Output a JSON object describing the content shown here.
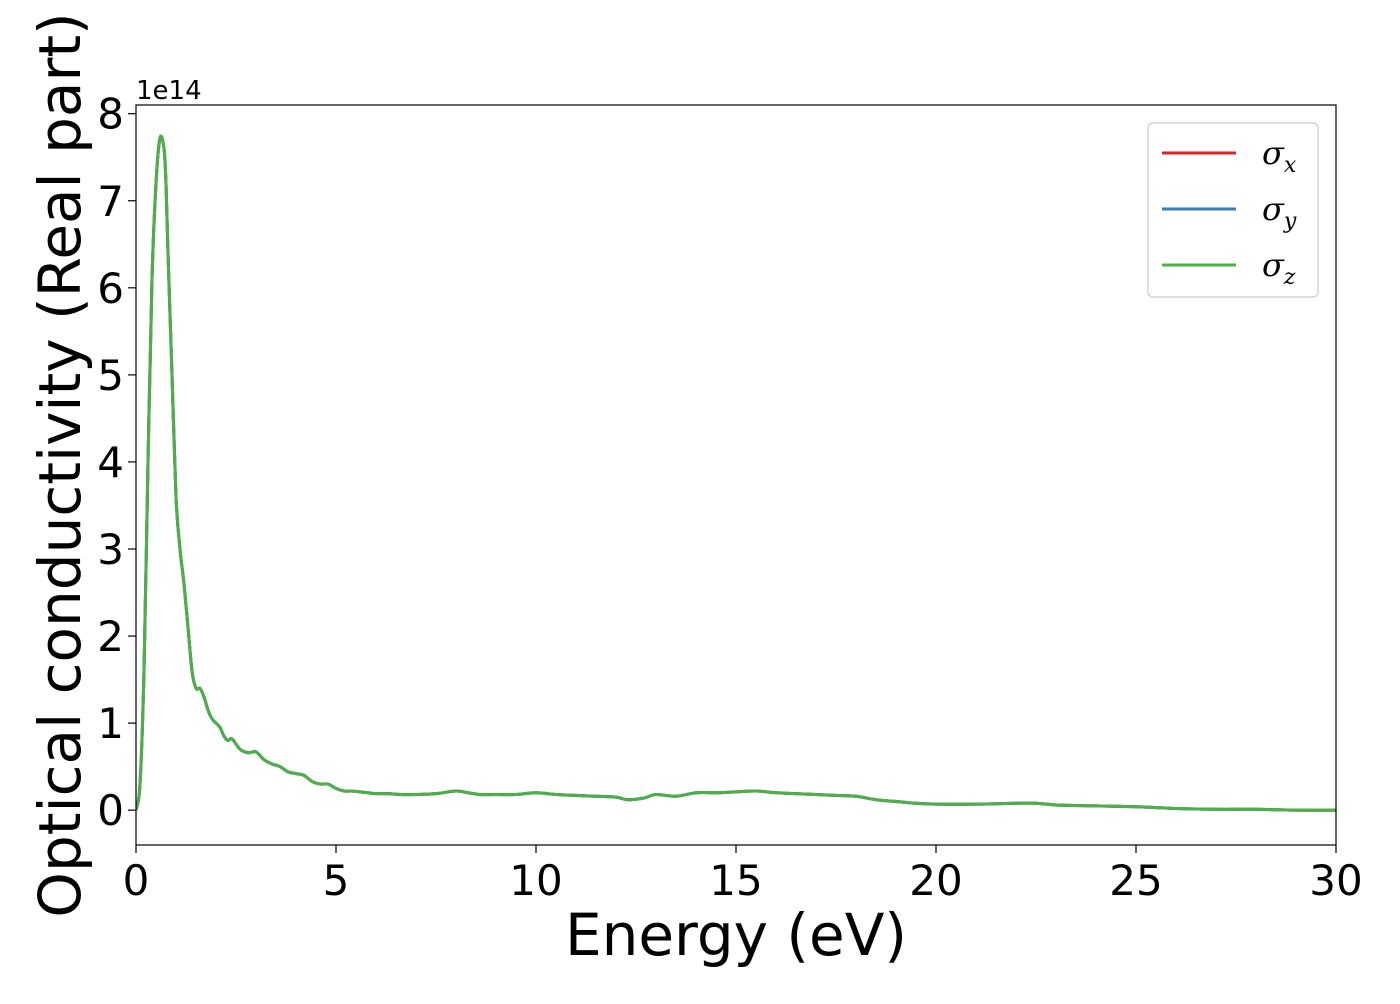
{
  "chart_data": {
    "type": "line",
    "title": "",
    "xlabel": "Energy (eV)",
    "ylabel": "Optical conductivity (Real part)",
    "y_offset_label": "1e14",
    "xlim": [
      0,
      30
    ],
    "ylim": [
      -0.4,
      8.1
    ],
    "xticks": [
      0,
      5,
      10,
      15,
      20,
      25,
      30
    ],
    "xtick_labels": [
      "0",
      "5",
      "10",
      "15",
      "20",
      "25",
      "30"
    ],
    "yticks": [
      0,
      1,
      2,
      3,
      4,
      5,
      6,
      7,
      8
    ],
    "ytick_labels": [
      "0",
      "1",
      "2",
      "3",
      "4",
      "5",
      "6",
      "7",
      "8"
    ],
    "grid": false,
    "legend_position": "top-right",
    "x": [
      0,
      0.1,
      0.2,
      0.3,
      0.4,
      0.5,
      0.6,
      0.7,
      0.75,
      0.8,
      0.9,
      1.0,
      1.1,
      1.2,
      1.3,
      1.4,
      1.5,
      1.6,
      1.7,
      1.8,
      1.9,
      2.0,
      2.1,
      2.2,
      2.3,
      2.4,
      2.6,
      2.8,
      3.0,
      3.2,
      3.4,
      3.6,
      3.8,
      4.0,
      4.2,
      4.4,
      4.6,
      4.8,
      5.0,
      5.2,
      5.4,
      5.6,
      5.8,
      6.0,
      6.3,
      6.6,
      7.0,
      7.5,
      8.0,
      8.3,
      8.6,
      9.0,
      9.5,
      10.0,
      10.5,
      11.0,
      11.5,
      12.0,
      12.3,
      12.7,
      13.0,
      13.5,
      14.0,
      14.5,
      15.0,
      15.5,
      16.0,
      16.5,
      17.0,
      17.5,
      18.0,
      18.5,
      19.0,
      19.5,
      20.0,
      21.0,
      22.0,
      22.5,
      23.0,
      24.0,
      25.0,
      26.0,
      27.0,
      28.0,
      29.0,
      30.0
    ],
    "series": [
      {
        "name": "σx",
        "color": "#d62728",
        "values": [
          0.0,
          0.3,
          1.6,
          4.0,
          6.1,
          7.2,
          7.72,
          7.6,
          7.2,
          6.4,
          5.0,
          3.6,
          3.0,
          2.6,
          2.1,
          1.6,
          1.4,
          1.4,
          1.3,
          1.15,
          1.05,
          1.0,
          0.95,
          0.85,
          0.8,
          0.82,
          0.7,
          0.66,
          0.67,
          0.58,
          0.53,
          0.5,
          0.44,
          0.42,
          0.4,
          0.33,
          0.3,
          0.3,
          0.25,
          0.22,
          0.22,
          0.21,
          0.2,
          0.19,
          0.19,
          0.18,
          0.18,
          0.19,
          0.22,
          0.2,
          0.18,
          0.18,
          0.18,
          0.2,
          0.18,
          0.17,
          0.16,
          0.15,
          0.12,
          0.14,
          0.18,
          0.16,
          0.2,
          0.2,
          0.21,
          0.22,
          0.2,
          0.19,
          0.18,
          0.17,
          0.16,
          0.12,
          0.1,
          0.08,
          0.07,
          0.07,
          0.08,
          0.08,
          0.06,
          0.05,
          0.04,
          0.02,
          0.01,
          0.01,
          0.0,
          0.0
        ]
      },
      {
        "name": "σy",
        "color": "#377eb8",
        "values": [
          0.0,
          0.3,
          1.6,
          4.0,
          6.1,
          7.2,
          7.72,
          7.6,
          7.2,
          6.4,
          5.0,
          3.6,
          3.0,
          2.6,
          2.1,
          1.6,
          1.4,
          1.4,
          1.3,
          1.15,
          1.05,
          1.0,
          0.95,
          0.85,
          0.8,
          0.82,
          0.7,
          0.66,
          0.67,
          0.58,
          0.53,
          0.5,
          0.44,
          0.42,
          0.4,
          0.33,
          0.3,
          0.3,
          0.25,
          0.22,
          0.22,
          0.21,
          0.2,
          0.19,
          0.19,
          0.18,
          0.18,
          0.19,
          0.22,
          0.2,
          0.18,
          0.18,
          0.18,
          0.2,
          0.18,
          0.17,
          0.16,
          0.15,
          0.12,
          0.14,
          0.18,
          0.16,
          0.2,
          0.2,
          0.21,
          0.22,
          0.2,
          0.19,
          0.18,
          0.17,
          0.16,
          0.12,
          0.1,
          0.08,
          0.07,
          0.07,
          0.08,
          0.08,
          0.06,
          0.05,
          0.04,
          0.02,
          0.01,
          0.01,
          0.0,
          0.0
        ]
      },
      {
        "name": "σz",
        "color": "#4daf4a",
        "values": [
          0.0,
          0.3,
          1.6,
          4.0,
          6.1,
          7.2,
          7.72,
          7.6,
          7.2,
          6.4,
          5.0,
          3.6,
          3.0,
          2.6,
          2.1,
          1.6,
          1.4,
          1.4,
          1.3,
          1.15,
          1.05,
          1.0,
          0.95,
          0.85,
          0.8,
          0.82,
          0.7,
          0.66,
          0.67,
          0.58,
          0.53,
          0.5,
          0.44,
          0.42,
          0.4,
          0.33,
          0.3,
          0.3,
          0.25,
          0.22,
          0.22,
          0.21,
          0.2,
          0.19,
          0.19,
          0.18,
          0.18,
          0.19,
          0.22,
          0.2,
          0.18,
          0.18,
          0.18,
          0.2,
          0.18,
          0.17,
          0.16,
          0.15,
          0.12,
          0.14,
          0.18,
          0.16,
          0.2,
          0.2,
          0.21,
          0.22,
          0.2,
          0.19,
          0.18,
          0.17,
          0.16,
          0.12,
          0.1,
          0.08,
          0.07,
          0.07,
          0.08,
          0.08,
          0.06,
          0.05,
          0.04,
          0.02,
          0.01,
          0.01,
          0.0,
          0.0
        ]
      }
    ],
    "legend": [
      {
        "symbol": "σ",
        "sub": "x",
        "color": "#d62728"
      },
      {
        "symbol": "σ",
        "sub": "y",
        "color": "#377eb8"
      },
      {
        "symbol": "σ",
        "sub": "z",
        "color": "#4daf4a"
      }
    ]
  }
}
